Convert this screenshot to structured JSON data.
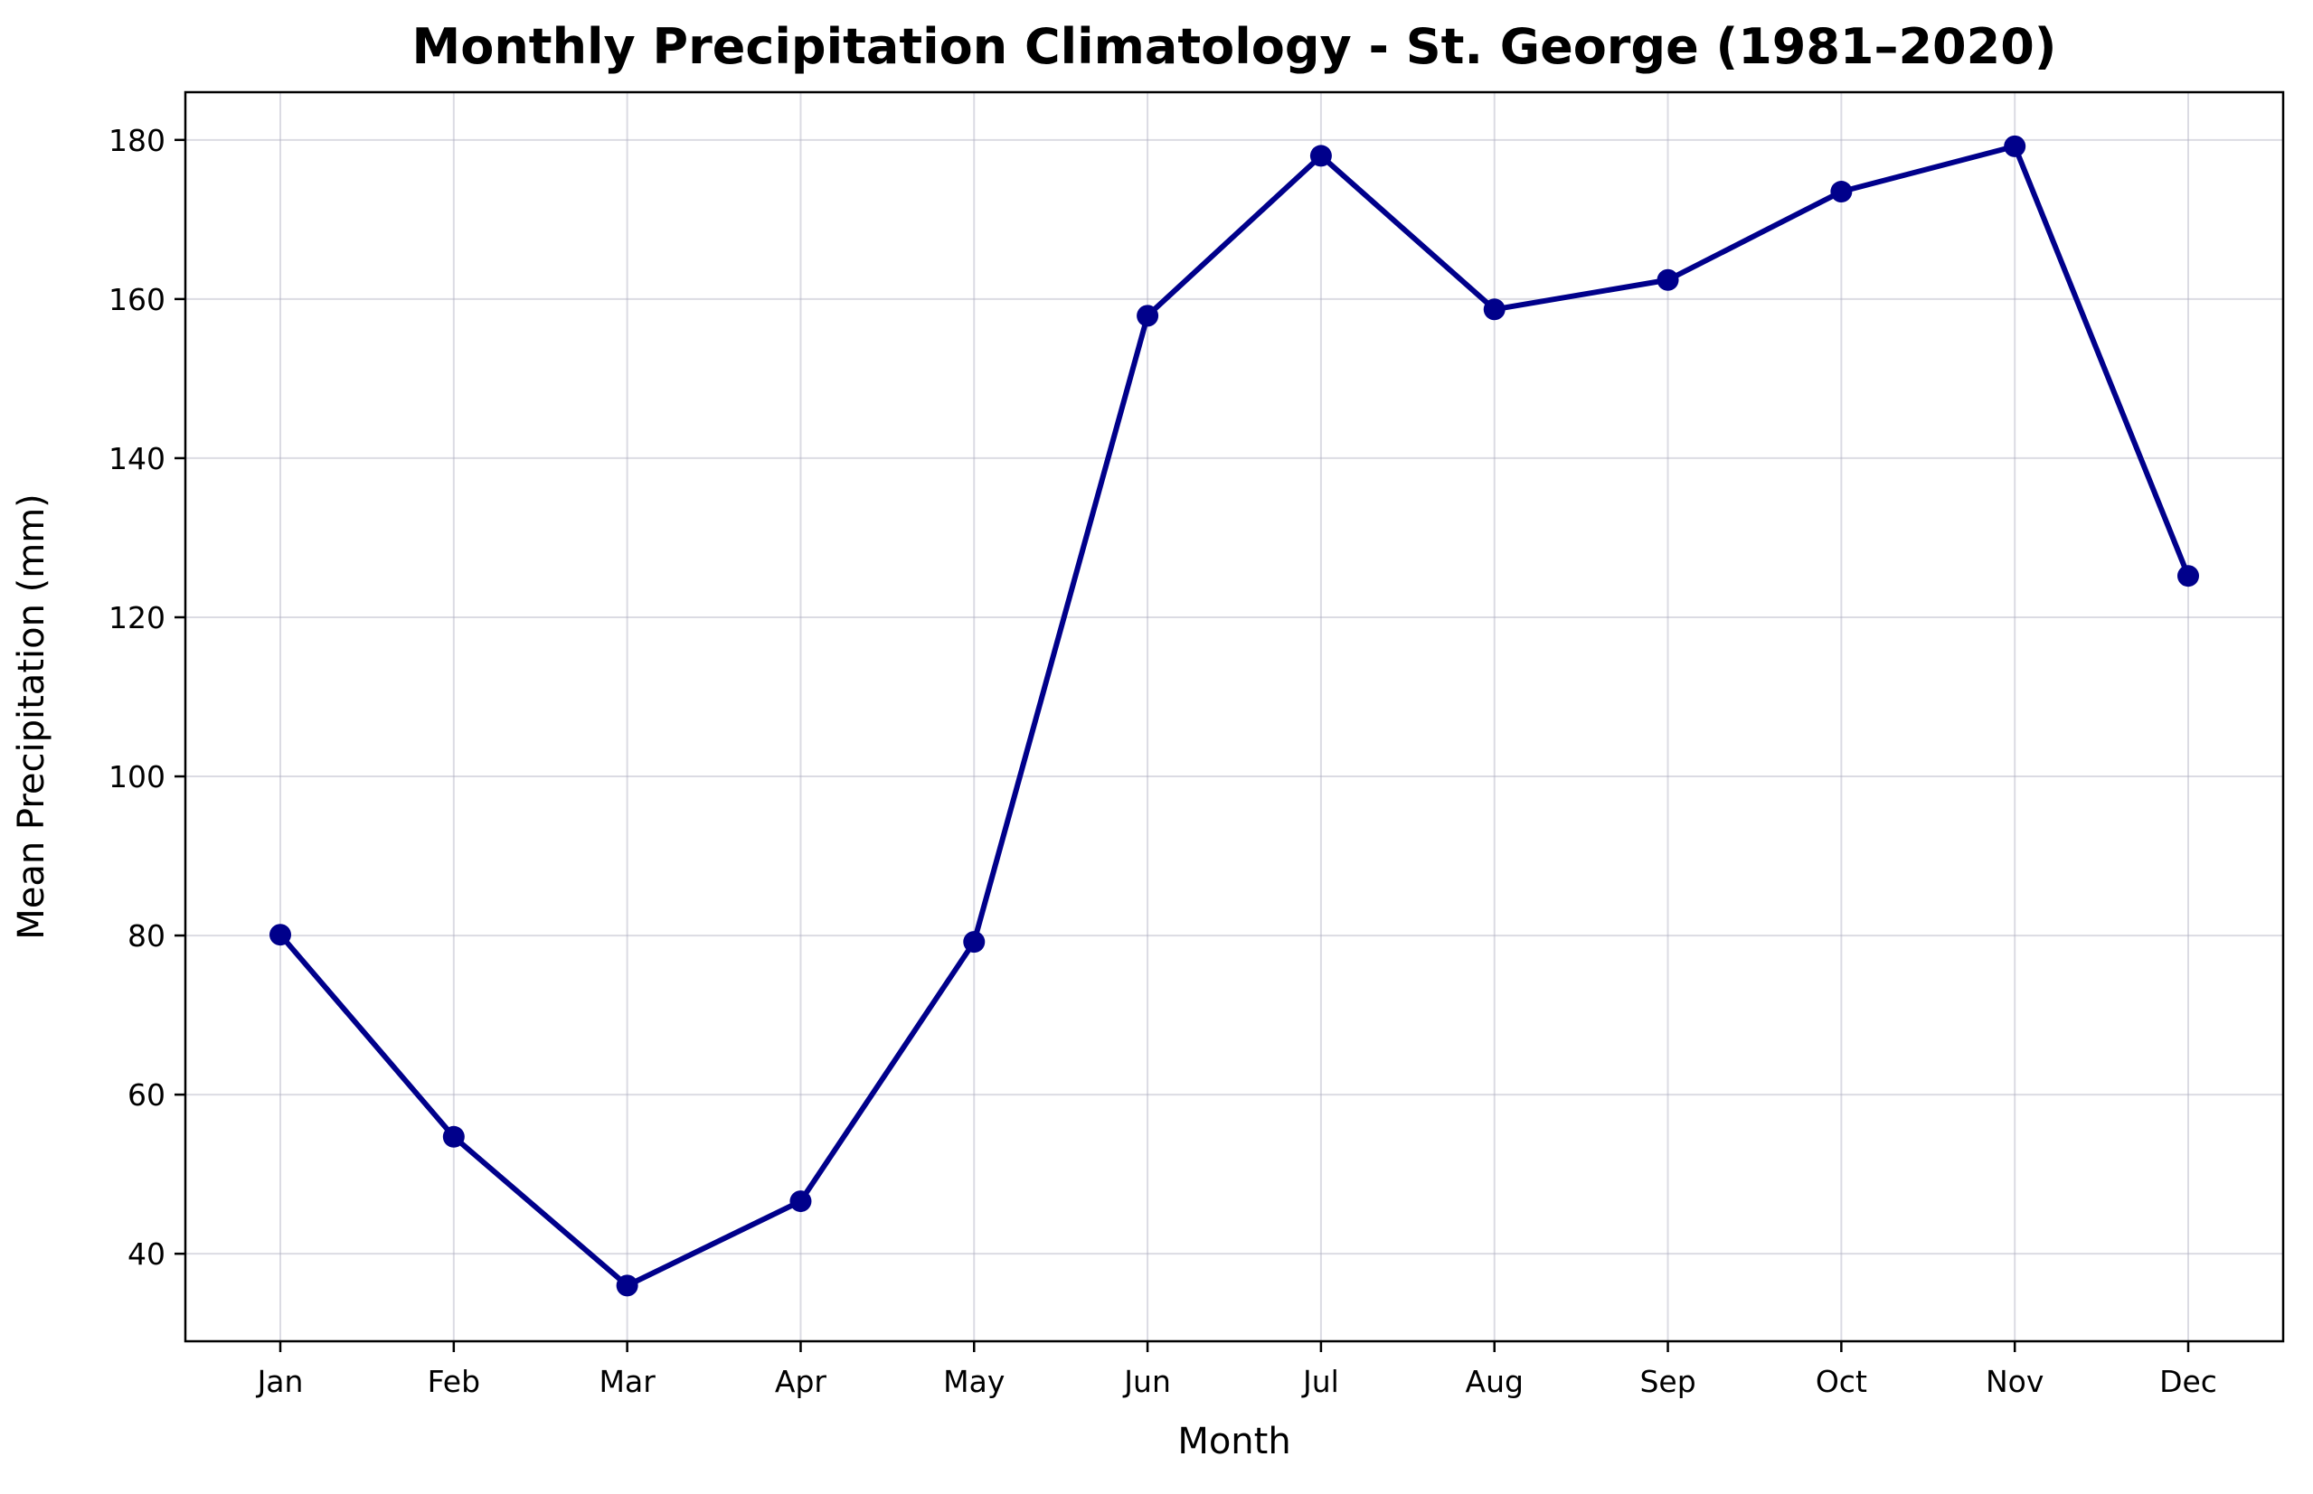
{
  "chart_data": {
    "type": "line",
    "title": "Monthly Precipitation Climatology - St. George (1981–2020)",
    "xlabel": "Month",
    "ylabel": "Mean Precipitation (mm)",
    "categories": [
      "Jan",
      "Feb",
      "Mar",
      "Apr",
      "May",
      "Jun",
      "Jul",
      "Aug",
      "Sep",
      "Oct",
      "Nov",
      "Dec"
    ],
    "series": [
      {
        "values": [
          80.1,
          54.7,
          36.0,
          46.6,
          79.2,
          157.9,
          178.0,
          158.7,
          162.4,
          173.5,
          179.2,
          125.2
        ],
        "color": "#00008b",
        "marker": "circle"
      }
    ],
    "yticks": [
      40,
      60,
      80,
      100,
      120,
      140,
      160,
      180
    ],
    "ylim": [
      29,
      186
    ],
    "grid": true,
    "legend": "none"
  }
}
